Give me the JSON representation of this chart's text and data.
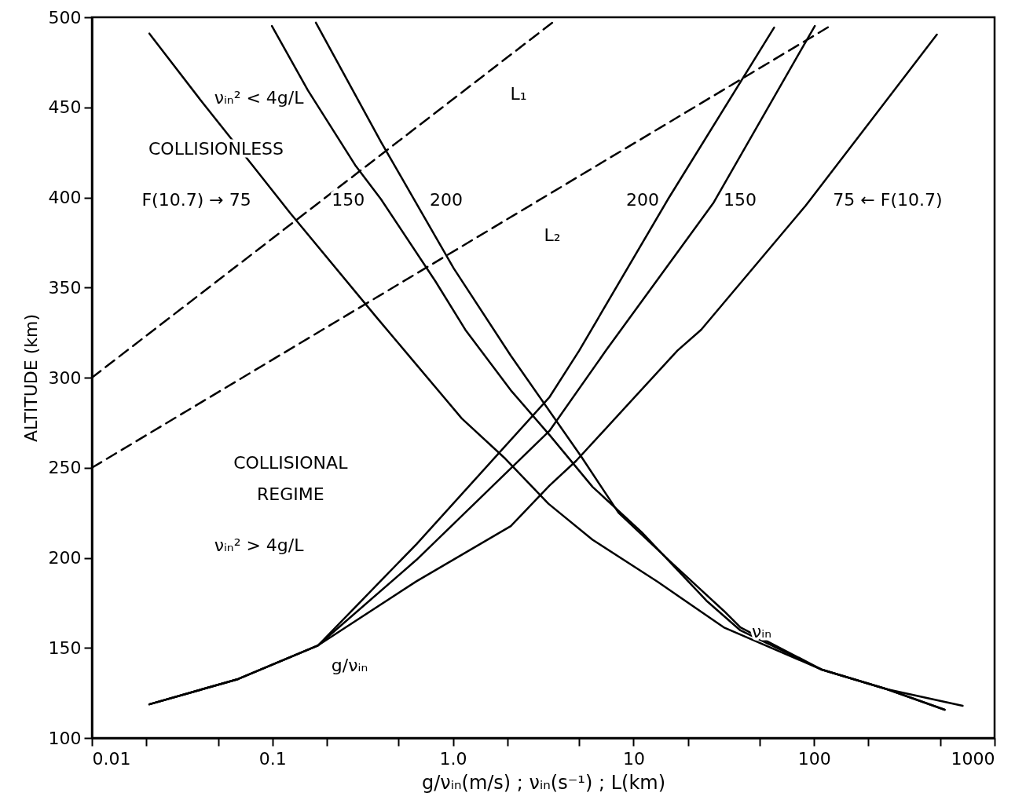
{
  "chart_data": {
    "type": "line",
    "xlabel": "g/νᵢₙ(m/s) ; νᵢₙ(s⁻¹) ; L(km)",
    "ylabel": "ALTITUDE (km)",
    "log": "x",
    "grid": false,
    "xlim": [
      0.01,
      1000
    ],
    "ylim": [
      100,
      500
    ],
    "xticks": [
      0.01,
      {
        "value": 0.02,
        "label": null
      },
      {
        "value": 0.05,
        "label": null
      },
      0.1,
      {
        "value": 0.2,
        "label": null
      },
      {
        "value": 0.5,
        "label": null
      },
      {
        "value": 1,
        "label": "1.0"
      },
      {
        "value": 2,
        "label": null
      },
      {
        "value": 5,
        "label": null
      },
      10,
      {
        "value": 20,
        "label": null
      },
      {
        "value": 50,
        "label": null
      },
      100,
      {
        "value": 200,
        "label": null
      },
      {
        "value": 500,
        "label": null
      },
      1000
    ],
    "yticks": [
      100,
      150,
      200,
      250,
      300,
      350,
      400,
      450,
      500
    ],
    "series": [
      {
        "color": "#000000",
        "line_style": "dashed",
        "x": [
          0.01,
          3.59
        ],
        "values": [
          300,
          497.4
        ]
      },
      {
        "color": "#000000",
        "line_style": "dashed",
        "x": [
          0.01,
          122
        ],
        "values": [
          250,
          495
        ]
      },
      {
        "color": "#000000",
        "line_style": "solid",
        "x": [
          0.0208,
          0.0645,
          0.179,
          0.628,
          2.09,
          3.42,
          4.81,
          17.5,
          23.7,
          89.8,
          206,
          479
        ],
        "values": [
          118.7,
          132.7,
          151.4,
          187,
          217.6,
          240,
          253.8,
          315,
          326.6,
          395.4,
          442.5,
          490.4
        ]
      },
      {
        "color": "#000000",
        "line_style": "solid",
        "x": [
          0.0208,
          0.0645,
          0.179,
          0.628,
          3.42,
          7.03,
          27.8,
          101
        ],
        "values": [
          118.7,
          132.7,
          151.4,
          198.9,
          270.4,
          315,
          397.2,
          495.2
        ]
      },
      {
        "color": "#000000",
        "line_style": "solid",
        "x": [
          0.0208,
          0.0645,
          0.179,
          0.628,
          3.42,
          5.0,
          15.5,
          60.1
        ],
        "values": [
          118.7,
          132.7,
          151.4,
          207.6,
          289.1,
          315,
          398.9,
          494.3
        ]
      },
      {
        "color": "#000000",
        "line_style": "solid",
        "x": [
          0.0208,
          0.0411,
          0.0773,
          0.125,
          0.377,
          1.12,
          1.95,
          3.38,
          5.93,
          13.6,
          31.6,
          110.7,
          254.5,
          666
        ],
        "values": [
          491,
          452.5,
          418,
          391.5,
          333.5,
          277.3,
          255,
          230,
          210,
          186.7,
          161.4,
          137.9,
          127,
          117.9
        ]
      },
      {
        "color": "#000000",
        "line_style": "solid",
        "x": [
          0.0993,
          0.157,
          0.287,
          0.4,
          0.798,
          1.17,
          2.09,
          3.45,
          5.93,
          11.1,
          25.6,
          39.1,
          110.7,
          254.5,
          529
        ],
        "values": [
          495.2,
          459.5,
          418,
          398.9,
          353.6,
          326.6,
          293,
          267.8,
          239.4,
          214.2,
          175.8,
          159.7,
          137.9,
          127,
          115.7
        ]
      },
      {
        "color": "#000000",
        "line_style": "solid",
        "x": [
          0.174,
          0.4,
          1.01,
          2.09,
          5.15,
          8.26,
          16.8,
          31.6,
          39.1,
          110.7,
          254.5,
          529
        ],
        "values": [
          497,
          430.7,
          360.6,
          312.2,
          256,
          225,
          195.9,
          170.6,
          161.4,
          137.9,
          127,
          115.7
        ]
      }
    ],
    "annotations": [
      "νᵢₙ² < 4g/L",
      "COLLISIONLESS",
      "F(10.7) → 75",
      "150",
      "200",
      "200",
      "150",
      "75 ← F(10.7)",
      "L₁",
      "L₂",
      "COLLISIONAL",
      "REGIME",
      "νᵢₙ² > 4g/L",
      "g/νᵢₙ",
      "νᵢₙ"
    ]
  }
}
